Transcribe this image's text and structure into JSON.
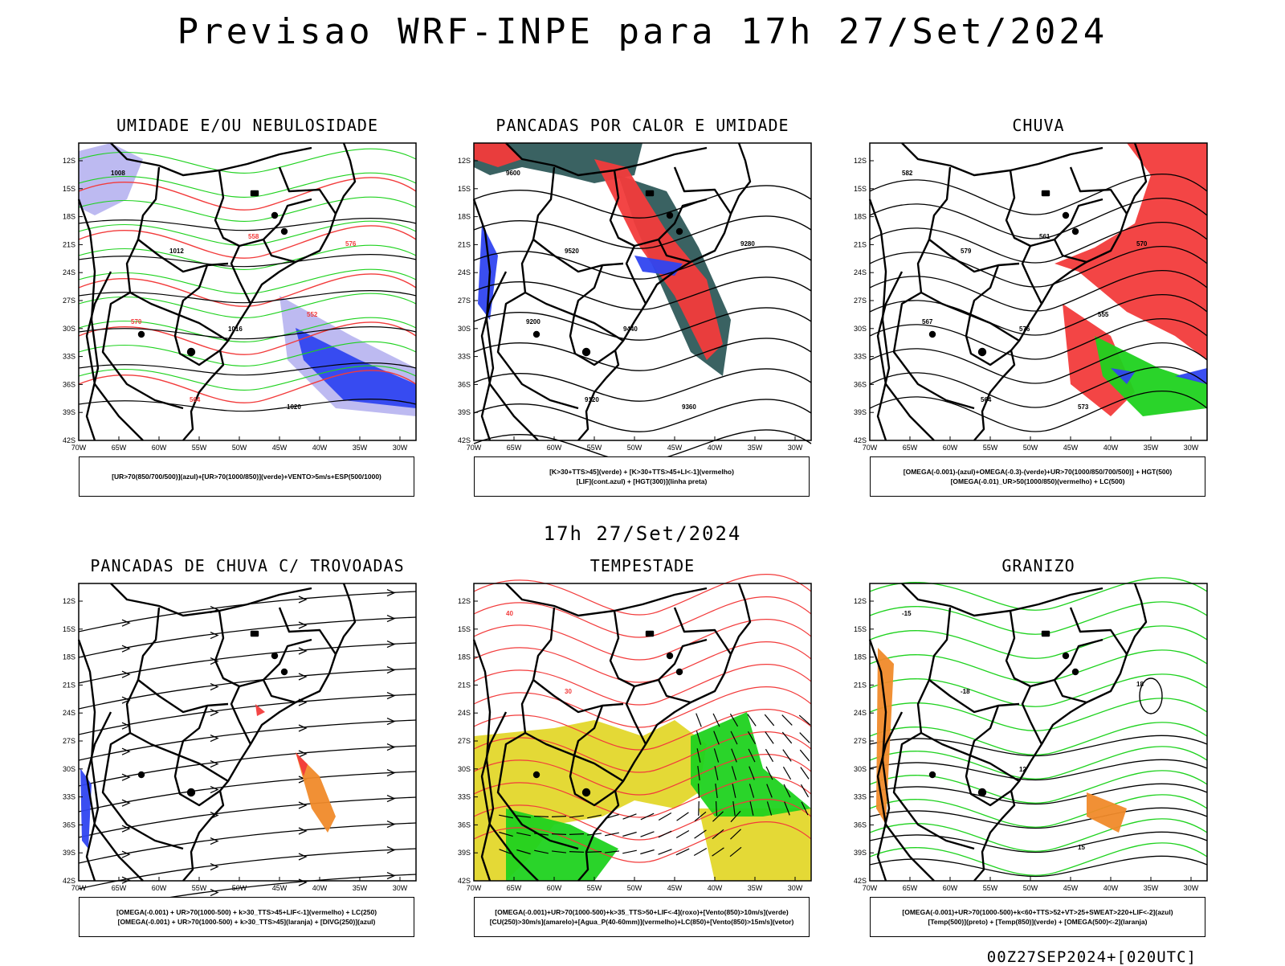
{
  "main_title": "Previsao WRF-INPE  para 17h 27/Set/2024",
  "mid_title": "17h 27/Set/2024",
  "footer": "00Z27SEP2024+[020UTC]",
  "axes": {
    "lat_labels": [
      "12S",
      "15S",
      "18S",
      "21S",
      "24S",
      "27S",
      "30S",
      "33S",
      "36S",
      "39S",
      "42S"
    ],
    "lon_labels": [
      "70W",
      "65W",
      "60W",
      "55W",
      "50W",
      "45W",
      "40W",
      "35W",
      "30W"
    ]
  },
  "colors": {
    "red": "#f23b3b",
    "blue": "#2f44f0",
    "green": "#1fd21f",
    "lavender": "#b9b6f0",
    "teal": "#2f5a5a",
    "yellow": "#e3d72b",
    "orange": "#f08a2a",
    "violet": "#5555ee"
  },
  "panels": [
    {
      "title": "UMIDADE E/OU NEBULOSIDADE",
      "legend": [
        "[UR>70(850/700/500)](azul)+[UR>70(1000/850)](verde)+VENTO>5m/s+ESP(500/1000)"
      ],
      "labels": [
        "1008",
        "1012",
        "1016",
        "1020",
        "576",
        "570",
        "564",
        "558",
        "552"
      ]
    },
    {
      "title": "PANCADAS POR CALOR E UMIDADE",
      "legend": [
        "[K>30+TTS>45](verde) + [K>30+TTS>45+LI<-1](vermelho)",
        "[LIF](cont.azul) + [HGT(300)](linha preta)"
      ],
      "labels": [
        "9600",
        "9520",
        "9440",
        "9360",
        "9280",
        "9200",
        "9120"
      ]
    },
    {
      "title": "CHUVA",
      "legend": [
        "[OMEGA(-0.001)-(azul)+OMEGA(-0.3)-(verde)+UR>70(1000/850/700/500)] + HGT(500)",
        "[OMEGA(-0.01)_UR>50(1000/850)(vermelho) + LC(500)"
      ],
      "labels": [
        "582",
        "579",
        "576",
        "573",
        "570",
        "567",
        "564",
        "561",
        "555"
      ]
    },
    {
      "title": "PANCADAS DE CHUVA C/ TROVOADAS",
      "legend": [
        "[OMEGA(-0.001) + UR>70(1000-500) + k>30_TTS>45+LIF<-1](vermelho) + LC(250)",
        "[OMEGA(-0.001) + UR>70(1000-500) + k>30_TTS>45](laranja) + [DIVG(250)](azul)"
      ],
      "labels": []
    },
    {
      "title": "TEMPESTADE",
      "legend": [
        "[OMEGA(-0.001)+UR>70(1000-500)+k>35_TTS>50+LIF<-4](roxo)+[Vento(850)>10m/s](verde)",
        "[CU(250)>30m/s](amarelo)+[Agua_P(40-60mm)](vermelho)+LC(850)+[Vento(850)>15m/s](vetor)"
      ],
      "labels": [
        "40",
        "30"
      ]
    },
    {
      "title": "GRANIZO",
      "legend": [
        "[OMEGA(-0.001)+UR>70(1000-500)+k<60+TTS>52+VT>25+SWEAT>220+LIF<-2](azul)",
        "[Temp(500)](preto) + [Temp(850)](verde) + [OMEGA(500)<-2](laranja)"
      ],
      "labels": [
        "-15",
        "-18",
        "12",
        "15",
        "18"
      ]
    }
  ]
}
